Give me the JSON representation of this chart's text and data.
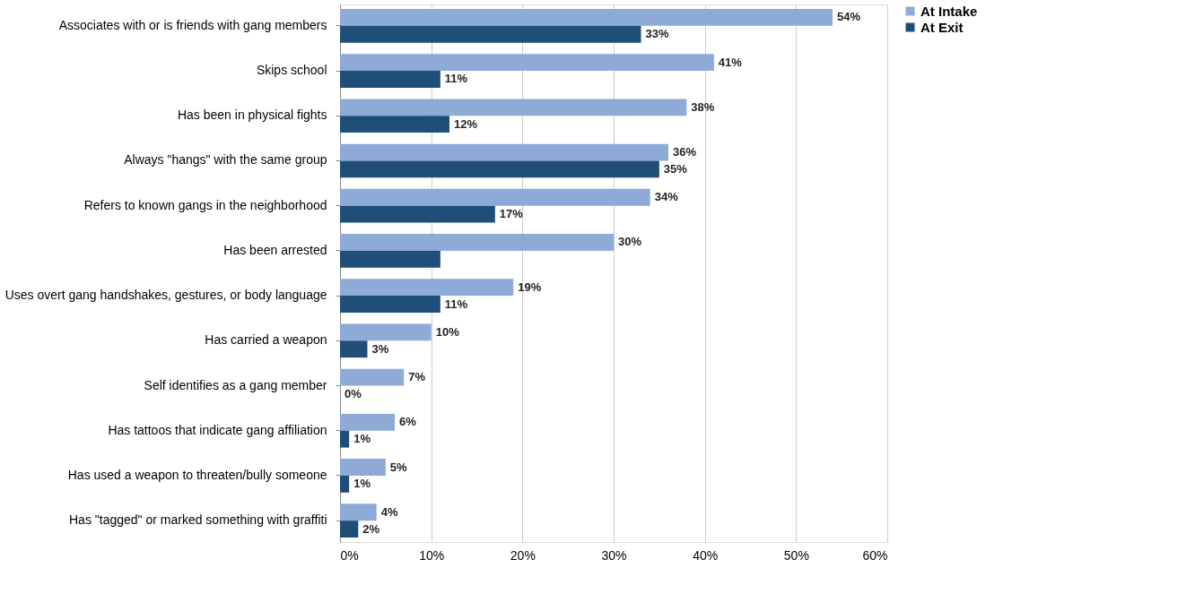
{
  "chart_data": {
    "type": "bar",
    "orientation": "horizontal",
    "categories": [
      "Associates with or is friends with gang members",
      "Skips school",
      "Has been in physical fights",
      "Always \"hangs\" with the same group",
      "Refers to known gangs in the neighborhood",
      "Has been arrested",
      "Uses overt gang handshakes, gestures, or body language",
      "Has carried a weapon",
      "Self identifies as a gang member",
      "Has tattoos that indicate gang affiliation",
      "Has used a weapon to threaten/bully someone",
      "Has \"tagged\" or marked something with graffiti"
    ],
    "series": [
      {
        "name": "At Intake",
        "color": "#8eaad6",
        "values": [
          54,
          41,
          38,
          36,
          34,
          30,
          19,
          10,
          7,
          6,
          5,
          4
        ],
        "value_labels": [
          "54%",
          "41%",
          "38%",
          "36%",
          "34%",
          "30%",
          "19%",
          "10%",
          "7%",
          "6%",
          "5%",
          "4%"
        ]
      },
      {
        "name": "At Exit",
        "color": "#1f4e79",
        "values": [
          33,
          11,
          12,
          35,
          17,
          11,
          11,
          3,
          0,
          1,
          1,
          2
        ],
        "value_labels": [
          "33%",
          "11%",
          "12%",
          "35%",
          "17%",
          null,
          "11%",
          "3%",
          "0%",
          "1%",
          "1%",
          "2%"
        ]
      }
    ],
    "xlim": [
      0,
      60
    ],
    "xticks": [
      {
        "value": 0,
        "label": "0%"
      },
      {
        "value": 10,
        "label": "10%"
      },
      {
        "value": 20,
        "label": "20%"
      },
      {
        "value": 30,
        "label": "30%"
      },
      {
        "value": 40,
        "label": "40%"
      },
      {
        "value": 50,
        "label": "50%"
      },
      {
        "value": 60,
        "label": "60%"
      }
    ],
    "grid": "x",
    "legend": "right"
  }
}
